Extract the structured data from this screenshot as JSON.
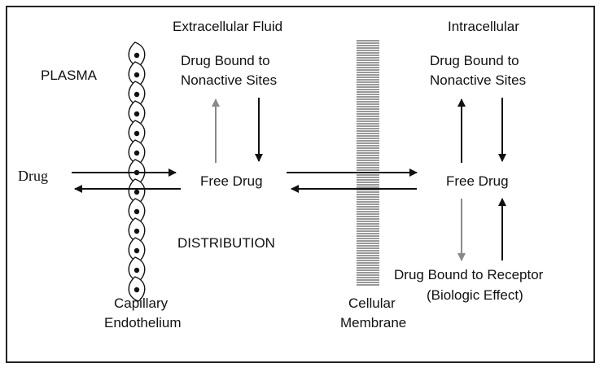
{
  "labels": {
    "plasma": "PLASMA",
    "extracellular_fluid": "Extracellular Fluid",
    "intracellular": "Intracellular",
    "ecf_bound_line1": "Drug Bound to",
    "ecf_bound_line2": "Nonactive Sites",
    "icf_bound_line1": "Drug Bound to",
    "icf_bound_line2": "Nonactive Sites",
    "drug": "Drug",
    "ecf_free_drug": "Free Drug",
    "icf_free_drug": "Free Drug",
    "distribution": "DISTRIBUTION",
    "receptor_line1": "Drug Bound to Receptor",
    "receptor_line2": "(Biologic Effect)",
    "capillary_line1": "Capillary",
    "capillary_line2": "Endothelium",
    "membrane_line1": "Cellular",
    "membrane_line2": "Membrane"
  },
  "colors": {
    "text": "#111111",
    "border": "#222222",
    "arrow_dark": "#111111",
    "arrow_light": "#8a8a8a"
  }
}
